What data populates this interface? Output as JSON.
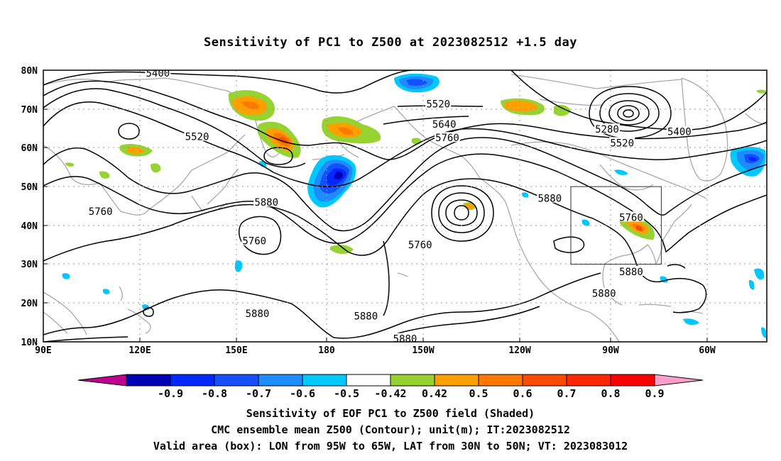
{
  "title": "Sensitivity of PC1 to Z500 at 2023082512 +1.5 day",
  "colors": {
    "coast": "#a9a9a9",
    "contour": "#000000",
    "grid": "#9a9a9a",
    "n09": "#c00090",
    "n08": "#0000b4",
    "n07": "#0028ff",
    "n06": "#1450ff",
    "n05": "#1c8cff",
    "n042": "#00c8ff",
    "mid": "#ffffff",
    "p042": "#96d232",
    "p05": "#ffa000",
    "p06": "#ff7800",
    "p07": "#ff4b00",
    "p08": "#ff2800",
    "p09": "#ff0000",
    "p10": "#ff9ec8"
  },
  "axes": {
    "lat_labels": [
      "80N",
      "70N",
      "60N",
      "50N",
      "40N",
      "30N",
      "20N",
      "10N"
    ],
    "lon_labels": [
      "90E",
      "120E",
      "150E",
      "180",
      "150W",
      "120W",
      "90W",
      "60W"
    ]
  },
  "contour_labels": [
    {
      "text": "5400",
      "lon": 128,
      "lat": 79.3
    },
    {
      "text": "5640",
      "lon": 61,
      "lat": 69.4
    },
    {
      "text": "5520",
      "lon": 141,
      "lat": 62.9
    },
    {
      "text": "5880",
      "lon": 164,
      "lat": 46.0
    },
    {
      "text": "5760",
      "lon": 109,
      "lat": 43.6
    },
    {
      "text": "5760",
      "lon": 160,
      "lat": 36.0
    },
    {
      "text": "5880",
      "lon": 161,
      "lat": 17.3
    },
    {
      "text": "5520",
      "lon": 221,
      "lat": 71.3
    },
    {
      "text": "5640",
      "lon": 223,
      "lat": 66.1
    },
    {
      "text": "5760",
      "lon": 224,
      "lat": 62.6
    },
    {
      "text": "5760",
      "lon": 215,
      "lat": 35.0
    },
    {
      "text": "5880",
      "lon": 197,
      "lat": 16.7
    },
    {
      "text": "5880",
      "lon": 210,
      "lat": 10.8
    },
    {
      "text": "5880",
      "lon": 258,
      "lat": 47.0
    },
    {
      "text": "5280",
      "lon": 277,
      "lat": 64.8
    },
    {
      "text": "5520",
      "lon": 282,
      "lat": 61.3
    },
    {
      "text": "5400",
      "lon": 301,
      "lat": 64.2
    },
    {
      "text": "5760",
      "lon": 285,
      "lat": 42.1
    },
    {
      "text": "5880",
      "lon": 285,
      "lat": 28.1
    },
    {
      "text": "5880",
      "lon": 276,
      "lat": 22.5
    }
  ],
  "colorbar": {
    "labels": [
      "-0.9",
      "-0.8",
      "-0.7",
      "-0.6",
      "-0.5",
      "-0.42",
      "0.42",
      "0.5",
      "0.6",
      "0.7",
      "0.8",
      "0.9"
    ],
    "colors": [
      "#0000b4",
      "#0028ff",
      "#1450ff",
      "#1c8cff",
      "#00c8ff",
      "#ffffff",
      "#96d232",
      "#ffa000",
      "#ff7800",
      "#ff4b00",
      "#ff2800",
      "#ff0000"
    ]
  },
  "captions": {
    "line1": "Sensitivity of EOF PC1 to Z500 field (Shaded)",
    "line2": "CMC ensemble mean Z500 (Contour); unit(m); IT:2023082512",
    "line3": "Valid area (box): LON from 95W to 65W, LAT from 30N to 50N; VT: 2023083012"
  },
  "valid_box": {
    "lon_min": 265,
    "lon_max": 295,
    "lat_min": 30,
    "lat_max": 50
  }
}
